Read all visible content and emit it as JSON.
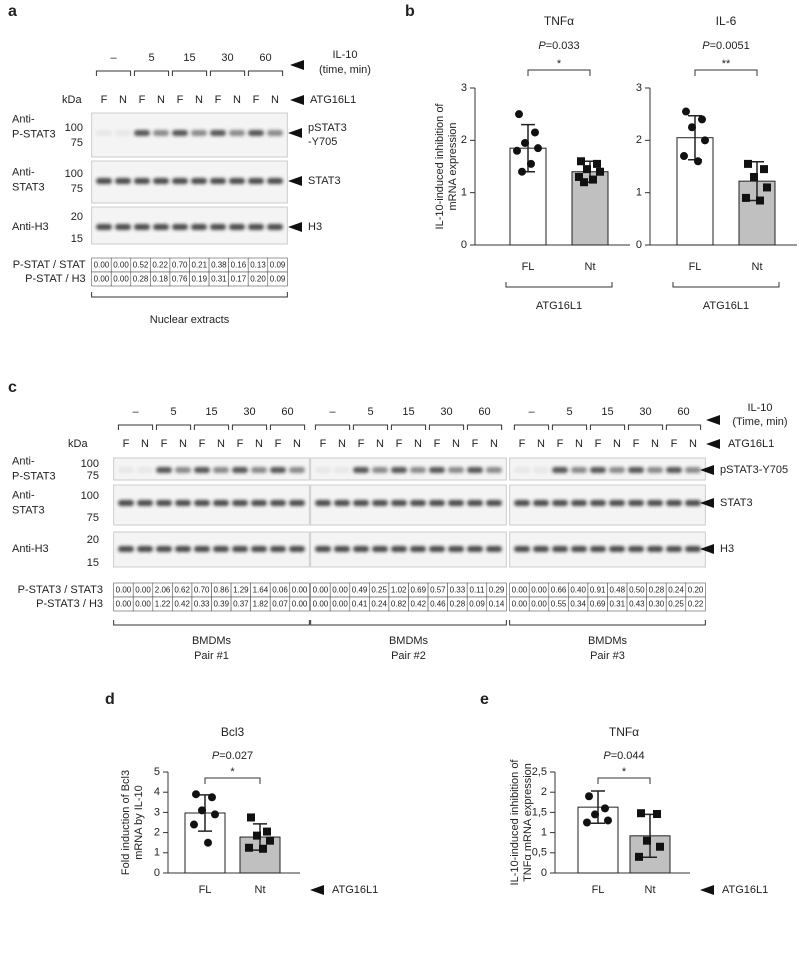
{
  "panels": {
    "a": {
      "label": "a",
      "treatment": "IL-10",
      "treatment_unit": "(time, min)",
      "times": [
        "–",
        "5",
        "15",
        "30",
        "60"
      ],
      "kda": "kDa",
      "genotype": "ATG16L1",
      "lanes": [
        "F",
        "N",
        "F",
        "N",
        "F",
        "N",
        "F",
        "N",
        "F",
        "N"
      ],
      "rows": [
        {
          "label": [
            "Anti-",
            "P-STAT3"
          ],
          "markers": [
            "100",
            "75"
          ],
          "target": [
            "pSTAT3",
            "-Y705"
          ]
        },
        {
          "label": [
            "Anti-",
            "STAT3"
          ],
          "markers": [
            "100",
            "75"
          ],
          "target": [
            "STAT3"
          ]
        },
        {
          "label": [
            "Anti-H3"
          ],
          "markers": [
            "20",
            "15"
          ],
          "target": [
            "H3"
          ]
        }
      ],
      "quant": [
        {
          "label": "P-STAT / STAT",
          "values": [
            "0.00",
            "0.00",
            "0.52",
            "0.22",
            "0.70",
            "0.21",
            "0.38",
            "0.16",
            "0.13",
            "0.09"
          ]
        },
        {
          "label": "P-STAT / H3",
          "values": [
            "0.00",
            "0.00",
            "0.28",
            "0.18",
            "0.76",
            "0.19",
            "0.31",
            "0.17",
            "0.20",
            "0.09"
          ]
        }
      ],
      "footer": "Nuclear extracts"
    },
    "c": {
      "label": "c",
      "treatment": "IL-10",
      "treatment_unit": "(Time, min)",
      "times": [
        "–",
        "5",
        "15",
        "30",
        "60"
      ],
      "kda": "kDa",
      "genotype": "ATG16L1",
      "lanes": [
        "F",
        "N",
        "F",
        "N",
        "F",
        "N",
        "F",
        "N",
        "F",
        "N"
      ],
      "rows": [
        {
          "label": [
            "Anti-",
            "P-STAT3"
          ],
          "markers": [
            "100",
            "75"
          ],
          "target": [
            "pSTAT3-Y705"
          ]
        },
        {
          "label": [
            "Anti-",
            "STAT3"
          ],
          "markers": [
            "100",
            "75"
          ],
          "target": [
            "STAT3"
          ]
        },
        {
          "label": [
            "Anti-H3"
          ],
          "markers": [
            "20",
            "15"
          ],
          "target": [
            "H3"
          ]
        }
      ],
      "quant_labels": [
        "P-STAT3 / STAT3",
        "P-STAT3 / H3"
      ],
      "pairs": [
        {
          "name": [
            "BMDMs",
            "Pair #1"
          ],
          "quant": [
            [
              "0.00",
              "0.00",
              "2.06",
              "0.62",
              "0.70",
              "0.86",
              "1.29",
              "1.64",
              "0.06",
              "0.00"
            ],
            [
              "0.00",
              "0.00",
              "1.22",
              "0.42",
              "0.33",
              "0.39",
              "0.37",
              "1.82",
              "0.07",
              "0.00"
            ]
          ]
        },
        {
          "name": [
            "BMDMs",
            "Pair #2"
          ],
          "quant": [
            [
              "0.00",
              "0.00",
              "0.49",
              "0.25",
              "1.02",
              "0.69",
              "0.57",
              "0.33",
              "0.11",
              "0.29"
            ],
            [
              "0.00",
              "0.00",
              "0.41",
              "0.24",
              "0.82",
              "0.42",
              "0.46",
              "0.28",
              "0.09",
              "0.14"
            ]
          ]
        },
        {
          "name": [
            "BMDMs",
            "Pair #3"
          ],
          "quant": [
            [
              "0.00",
              "0.00",
              "0.66",
              "0.40",
              "0.91",
              "0.48",
              "0.50",
              "0.28",
              "0.24",
              "0.20"
            ],
            [
              "0.00",
              "0.00",
              "0.55",
              "0.34",
              "0.69",
              "0.31",
              "0.43",
              "0.30",
              "0.25",
              "0.22"
            ]
          ]
        }
      ]
    }
  },
  "chart_data": [
    {
      "type": "bar",
      "panel_label": "b",
      "title": "TNFα",
      "ylabel": [
        "IL-10-induced inhibition of",
        "mRNA expression"
      ],
      "categories": [
        "FL",
        "Nt"
      ],
      "values": [
        1.85,
        1.4
      ],
      "errors": [
        0.45,
        0.2
      ],
      "points": [
        [
          2.5,
          2.15,
          1.95,
          1.85,
          1.8,
          1.55,
          1.4
        ],
        [
          1.6,
          1.55,
          1.45,
          1.4,
          1.3,
          1.25,
          1.2
        ]
      ],
      "colors": [
        "#ffffff",
        "#c0c0c0"
      ],
      "ylim": [
        0,
        3
      ],
      "yticks": [
        0,
        1,
        2,
        3
      ],
      "p_value": "P=0.033",
      "stars": "*",
      "group_label": "ATG16L1"
    },
    {
      "type": "bar",
      "title": "IL-6",
      "categories": [
        "FL",
        "Nt"
      ],
      "values": [
        2.05,
        1.22
      ],
      "errors": [
        0.42,
        0.37
      ],
      "points": [
        [
          2.55,
          2.4,
          2.25,
          2.0,
          1.7,
          1.6
        ],
        [
          1.55,
          1.45,
          1.3,
          1.1,
          0.9,
          0.85
        ]
      ],
      "colors": [
        "#ffffff",
        "#c0c0c0"
      ],
      "ylim": [
        0,
        3
      ],
      "yticks": [
        0,
        1,
        2,
        3
      ],
      "p_value": "P=0.0051",
      "stars": "**",
      "group_label": "ATG16L1"
    },
    {
      "type": "bar",
      "panel_label": "d",
      "title": "Bcl3",
      "ylabel": [
        "Fold induction of Bcl3",
        "mRNA by IL-10"
      ],
      "categories": [
        "FL",
        "Nt"
      ],
      "values": [
        2.97,
        1.78
      ],
      "errors": [
        0.9,
        0.65
      ],
      "points": [
        [
          3.9,
          3.75,
          3.1,
          2.9,
          2.4,
          1.5
        ],
        [
          2.75,
          2.05,
          1.85,
          1.6,
          1.25,
          1.2
        ]
      ],
      "colors": [
        "#ffffff",
        "#c0c0c0"
      ],
      "ylim": [
        0,
        5
      ],
      "yticks": [
        0,
        1,
        2,
        3,
        4,
        5
      ],
      "p_value": "P=0.027",
      "stars": "*",
      "axis_label": "ATG16L1"
    },
    {
      "type": "bar",
      "panel_label": "e",
      "title": "TNFα",
      "ylabel": [
        "IL-10-induced inhibition of",
        "TNFα mRNA expression"
      ],
      "categories": [
        "FL",
        "Nt"
      ],
      "values": [
        1.63,
        0.92
      ],
      "errors": [
        0.4,
        0.53
      ],
      "points": [
        [
          1.9,
          1.6,
          1.45,
          1.3,
          1.25
        ],
        [
          1.48,
          1.46,
          0.8,
          0.65,
          0.4
        ]
      ],
      "colors": [
        "#ffffff",
        "#c0c0c0"
      ],
      "ylim": [
        0,
        2.5
      ],
      "yticks": [
        0,
        {
          "value": 0.5,
          "label": "0,5"
        },
        1,
        {
          "value": 1.5,
          "label": "1,5"
        },
        2,
        {
          "value": 2.5,
          "label": "2,5"
        }
      ],
      "p_value": "P=0.044",
      "stars": "*",
      "axis_label": "ATG16L1"
    }
  ]
}
